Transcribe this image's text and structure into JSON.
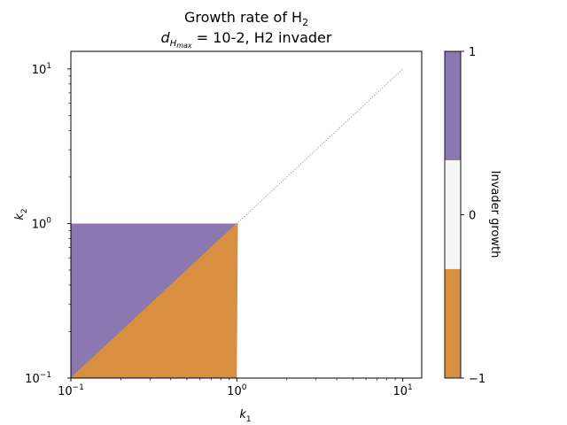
{
  "chart_data": {
    "type": "heatmap",
    "title": "Growth rate of H",
    "title_sub": "2",
    "subtitle_d": "d",
    "subtitle_sub": "H",
    "subtitle_subsub": "max",
    "subtitle_rest": " = 10-2, H2 invader",
    "xlabel": "k",
    "xlabel_sub": "1",
    "ylabel": "k",
    "ylabel_sub": "2",
    "xscale": "log",
    "yscale": "log",
    "xlim": [
      0.1,
      13
    ],
    "ylim": [
      0.1,
      13
    ],
    "xticks": [
      {
        "value": 0.1,
        "base": "10",
        "exp": "−1"
      },
      {
        "value": 1,
        "base": "10",
        "exp": "0"
      },
      {
        "value": 10,
        "base": "10",
        "exp": "1"
      }
    ],
    "yticks": [
      {
        "value": 0.1,
        "base": "10",
        "exp": "−1"
      },
      {
        "value": 1,
        "base": "10",
        "exp": "0"
      },
      {
        "value": 10,
        "base": "10",
        "exp": "1"
      }
    ],
    "regions": [
      {
        "name": "positive",
        "value": 1,
        "color": "#8c78b0",
        "description": "k2 > k1, k1 ≤ 1, k2 ≤ 1"
      },
      {
        "name": "negative",
        "value": -1,
        "color": "#d98f40",
        "description": "k2 < k1, k1 ≤ 1, k2 ≤ 1"
      }
    ],
    "domain_max": 1,
    "diagonal": {
      "from": [
        0.1,
        0.1
      ],
      "to": [
        10,
        10
      ],
      "style": "dotted",
      "color": "#999999"
    },
    "colorbar": {
      "label": "Invader growth",
      "ticks": [
        "1",
        "0",
        "−1"
      ],
      "tick_values": [
        1,
        0,
        -1
      ],
      "bands": [
        {
          "from": 0.333,
          "to": 1,
          "color": "#8c78b0"
        },
        {
          "from": -0.333,
          "to": 0.333,
          "color": "#f5f5f5"
        },
        {
          "from": -1,
          "to": -0.333,
          "color": "#d98f40"
        }
      ]
    }
  }
}
